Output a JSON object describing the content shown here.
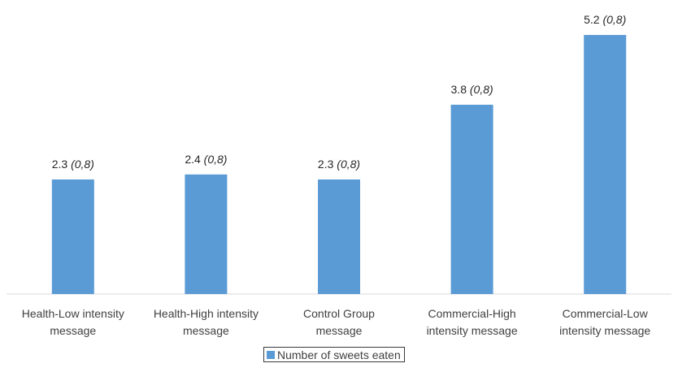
{
  "chart_data": {
    "type": "bar",
    "title": "",
    "xlabel": "",
    "ylabel": "",
    "ylim": [
      0,
      5.25
    ],
    "grid": false,
    "legend_position": "bottom",
    "categories": [
      [
        "Health-Low intensity",
        "message"
      ],
      [
        "Health-High intensity",
        "message"
      ],
      [
        "Control Group",
        "message"
      ],
      [
        "Commercial-High",
        "intensity message"
      ],
      [
        "Commercial-Low",
        "intensity message"
      ]
    ],
    "series": [
      {
        "name": "Number of sweets eaten",
        "color": "#5b9bd5",
        "values": [
          2.3,
          2.4,
          2.3,
          3.8,
          5.2
        ],
        "labels": [
          "2.3",
          "2.4",
          "2.3",
          "3.8",
          "5.2"
        ],
        "annotations": [
          "(0,8)",
          "(0,8)",
          "(0,8)",
          "(0,8)",
          "(0,8)"
        ]
      }
    ]
  }
}
